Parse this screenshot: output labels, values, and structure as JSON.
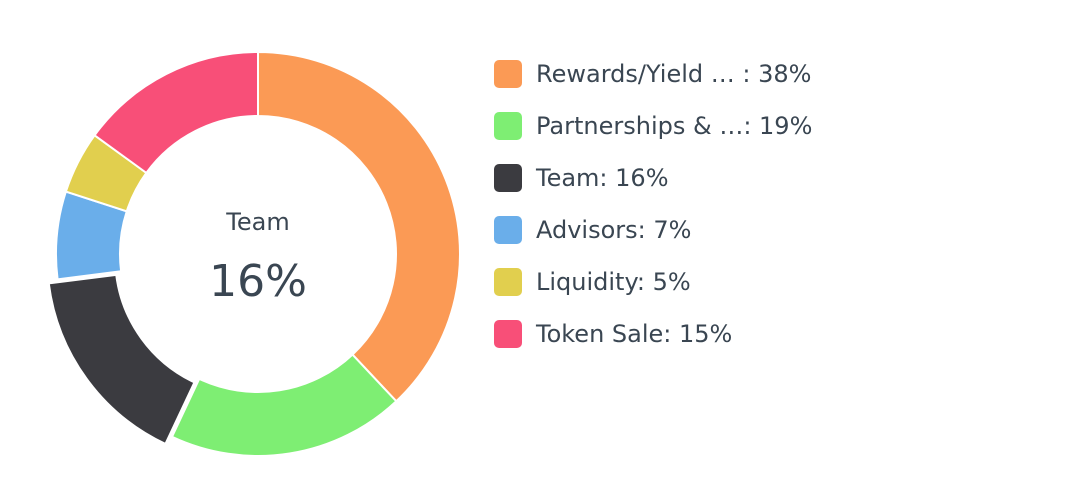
{
  "chart_data": {
    "type": "pie",
    "title": "",
    "center": {
      "label": "Team",
      "value": "16%"
    },
    "legend_position": "right",
    "slices": [
      {
        "label": "Rewards/Yield …",
        "legend_text": "Rewards/Yield … : 38%",
        "value": 38,
        "color": "#fb9a55"
      },
      {
        "label": "Partnerships & …",
        "legend_text": "Partnerships & …: 19%",
        "value": 19,
        "color": "#7eee73"
      },
      {
        "label": "Team",
        "legend_text": "Team: 16%",
        "value": 16,
        "color": "#3b3b40",
        "highlighted": true
      },
      {
        "label": "Advisors",
        "legend_text": "Advisors: 7%",
        "value": 7,
        "color": "#6aaeea"
      },
      {
        "label": "Liquidity",
        "legend_text": "Liquidity: 5%",
        "value": 5,
        "color": "#e1cf4e"
      },
      {
        "label": "Token Sale",
        "legend_text": "Token Sale: 15%",
        "value": 15,
        "color": "#f84f78"
      }
    ]
  }
}
